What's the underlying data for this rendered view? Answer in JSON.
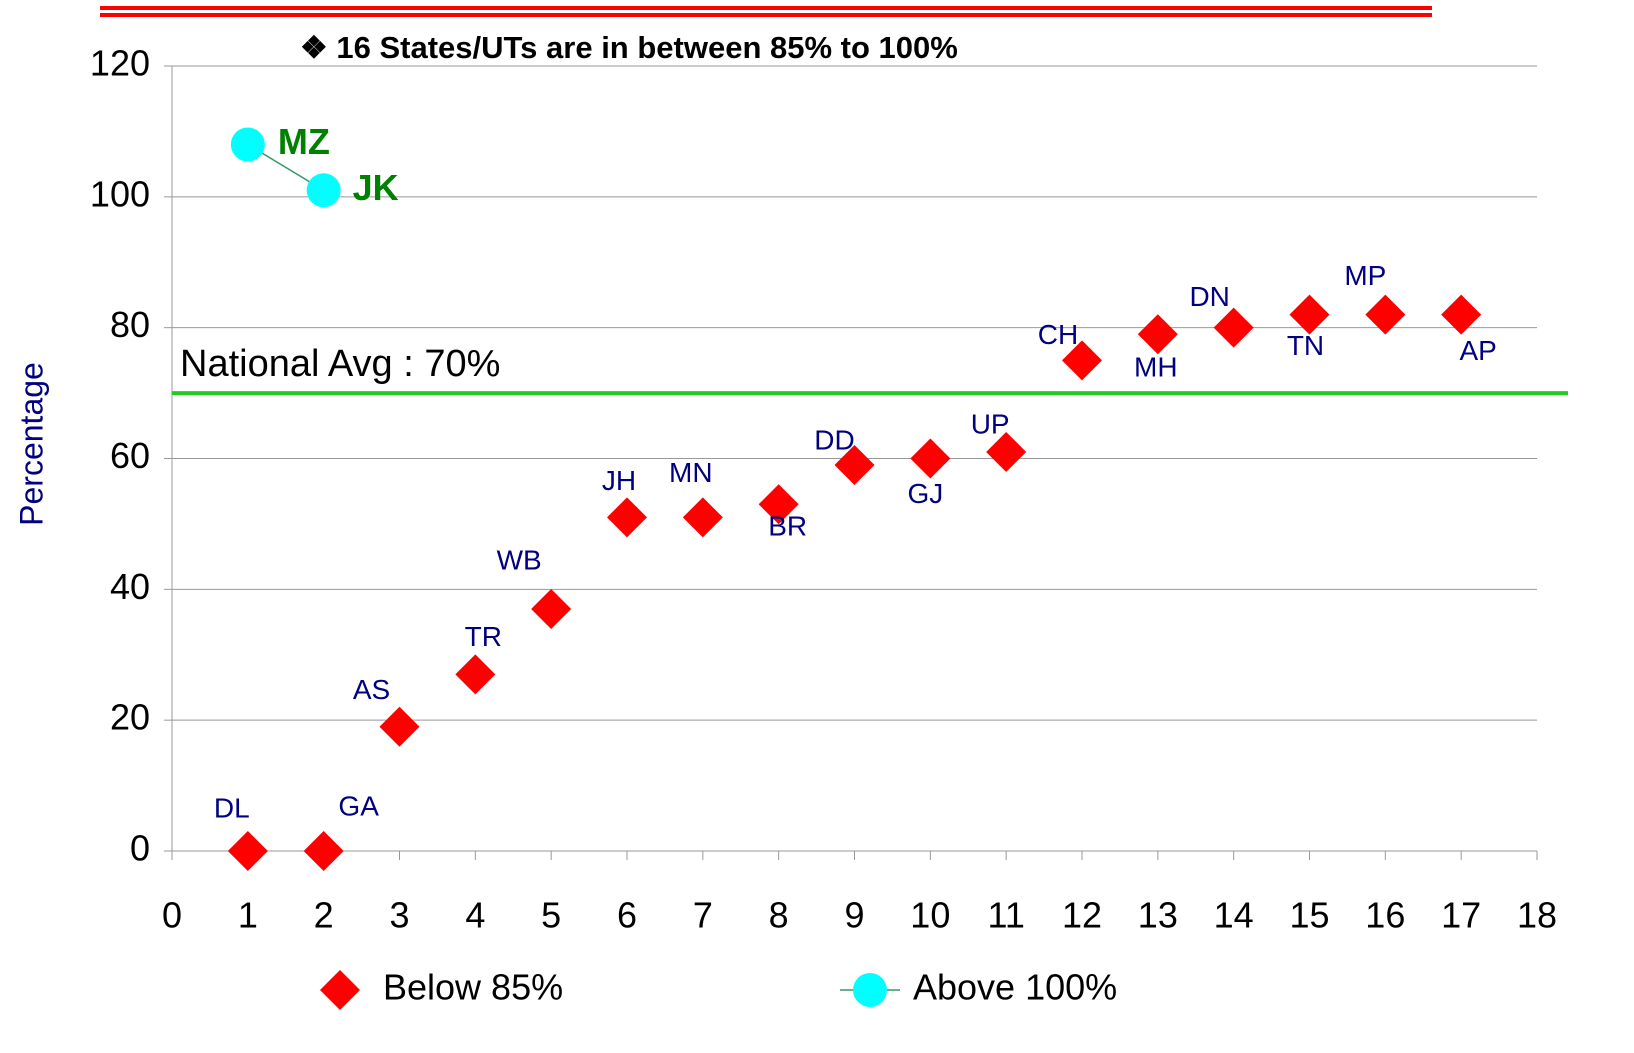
{
  "chart_data": {
    "type": "scatter",
    "title": "❖ 16 States/UTs are in between 85% to 100%",
    "ylabel": "Percentage",
    "xlim": [
      0,
      18
    ],
    "xticks": [
      0,
      1,
      2,
      3,
      4,
      5,
      6,
      7,
      8,
      9,
      10,
      11,
      12,
      13,
      14,
      15,
      16,
      17,
      18
    ],
    "ylim": [
      0,
      120
    ],
    "yticks": [
      0,
      20,
      40,
      60,
      80,
      100,
      120
    ],
    "grid": true,
    "legend": "bottom",
    "series": [
      {
        "name": "Below 85%",
        "color": "#ff0000",
        "marker": "diamond",
        "label_color": "#000080",
        "x": [
          1,
          2,
          3,
          4,
          5,
          6,
          7,
          8,
          9,
          10,
          11,
          12,
          13,
          14,
          15,
          16,
          17
        ],
        "values": [
          0,
          0,
          19,
          27,
          37,
          51,
          51,
          53,
          59,
          60,
          61,
          75,
          79,
          80,
          82,
          82,
          82
        ],
        "labels": [
          "DL",
          "GA",
          "AS",
          "TR",
          "WB",
          "JH",
          "MN",
          "BR",
          "DD",
          "GJ",
          "UP",
          "CH",
          "MH",
          "DN",
          "TN",
          "MP",
          "AP"
        ]
      },
      {
        "name": "Above 100%",
        "color": "#00ffff",
        "marker": "circle",
        "line_color": "#339966",
        "label_color": "#008000",
        "x": [
          1,
          2
        ],
        "values": [
          108,
          101
        ],
        "labels": [
          "MZ",
          "JK"
        ]
      }
    ],
    "reference_line": {
      "value": 70,
      "label": "National Avg : 70%",
      "color": "#22cc22"
    }
  }
}
